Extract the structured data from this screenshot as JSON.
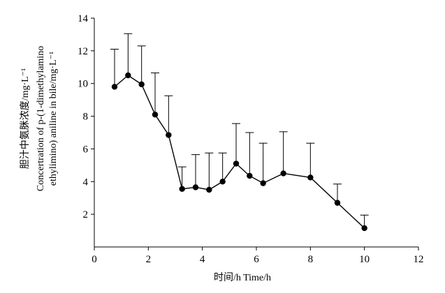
{
  "chart_data": {
    "type": "line",
    "xlabel": "时间/h  Time/h",
    "ylabel_lines": [
      "胆汁中氨脒浓度/mg·L⁻¹",
      "Concertration of p-(1-dimethylamino",
      "ethylimino) aniline in bile/mg·L⁻¹"
    ],
    "xlim": [
      0,
      12
    ],
    "ylim": [
      0,
      14
    ],
    "x_ticks": [
      0,
      2,
      4,
      6,
      8,
      10,
      12
    ],
    "y_ticks": [
      2,
      4,
      6,
      8,
      10,
      12,
      14
    ],
    "grid": false,
    "series": [
      {
        "x": [
          0.75,
          1.25,
          1.75,
          2.25,
          2.75,
          3.25,
          3.75,
          4.25,
          4.75,
          5.25,
          5.75,
          6.25,
          7.0,
          8.0,
          9.0,
          10.0
        ],
        "y": [
          9.8,
          10.5,
          9.95,
          8.1,
          6.85,
          3.55,
          3.65,
          3.5,
          4.0,
          5.1,
          4.35,
          3.9,
          4.5,
          4.25,
          2.7,
          1.15
        ],
        "error_upper": [
          12.1,
          13.05,
          12.3,
          10.65,
          9.25,
          4.9,
          5.65,
          5.75,
          5.75,
          7.55,
          7.0,
          6.35,
          7.05,
          6.35,
          3.85,
          1.95
        ]
      }
    ]
  }
}
